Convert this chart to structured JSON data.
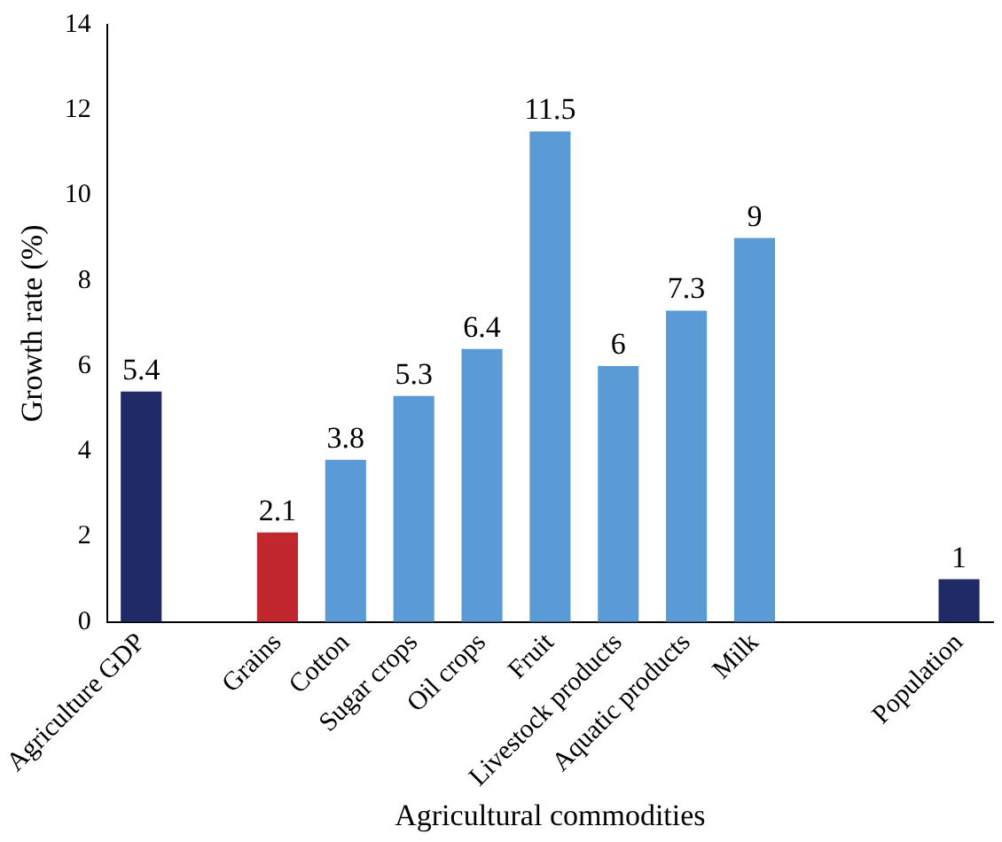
{
  "chart_data": {
    "type": "bar",
    "xlabel": "Agricultural commodities",
    "ylabel": "Growth rate (%)",
    "categories": [
      "Agriculture GDP",
      null,
      "Grains",
      "Cotton",
      "Sugar crops",
      "Oil crops",
      "Fruit",
      "Livestock products",
      "Aquatic products",
      "Milk",
      null,
      null,
      "Population"
    ],
    "values": [
      5.4,
      null,
      2.1,
      3.8,
      5.3,
      6.4,
      11.5,
      6,
      7.3,
      9,
      null,
      null,
      1
    ],
    "colors": [
      "#1f2a66",
      "#5b9bd5",
      "#c0282d",
      "#5b9bd5",
      "#5b9bd5",
      "#5b9bd5",
      "#5b9bd5",
      "#5b9bd5",
      "#5b9bd5",
      "#5b9bd5",
      "#5b9bd5",
      "#5b9bd5",
      "#1f2a66"
    ],
    "ylim": [
      0,
      14
    ],
    "yticks": [
      0,
      2,
      4,
      6,
      8,
      10,
      12,
      14
    ],
    "grid": false,
    "legend": false,
    "data_labels": true
  }
}
